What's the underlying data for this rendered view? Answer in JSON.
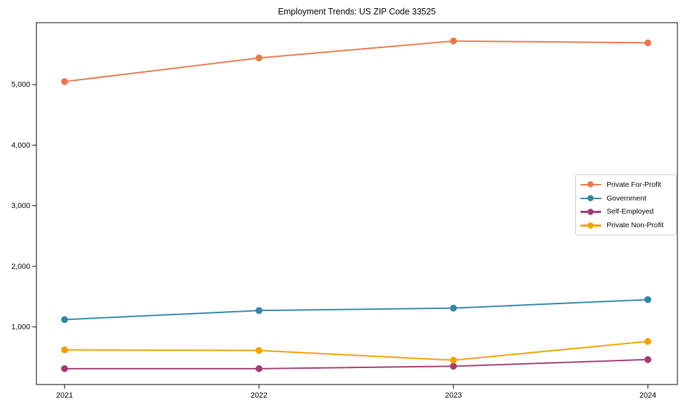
{
  "chart_data": {
    "type": "line",
    "title": "Employment Trends: US ZIP Code 33525",
    "x_categories": [
      "2021",
      "2022",
      "2023",
      "2024"
    ],
    "series": [
      {
        "name": "Private For-Profit",
        "color": "#E8784B",
        "values": [
          5050,
          5440,
          5720,
          5690
        ]
      },
      {
        "name": "Government",
        "color": "#2E86AB",
        "values": [
          1120,
          1270,
          1310,
          1450
        ]
      },
      {
        "name": "Self-Employed",
        "color": "#A23B72",
        "values": [
          310,
          310,
          350,
          460
        ]
      },
      {
        "name": "Private Non-Profit",
        "color": "#F5A100",
        "values": [
          620,
          610,
          450,
          760
        ]
      }
    ],
    "xlabel": "",
    "ylabel": "",
    "ylim": [
      48,
      6023
    ],
    "y_ticks": [
      1000,
      2000,
      3000,
      4000,
      5000
    ],
    "y_tick_labels": [
      "1,000",
      "2,000",
      "3,000",
      "4,000",
      "5,000"
    ],
    "grid": false,
    "marker": "circle",
    "legend_position": "center right",
    "axis_color": "#000000",
    "background_color": "#ffffff"
  }
}
